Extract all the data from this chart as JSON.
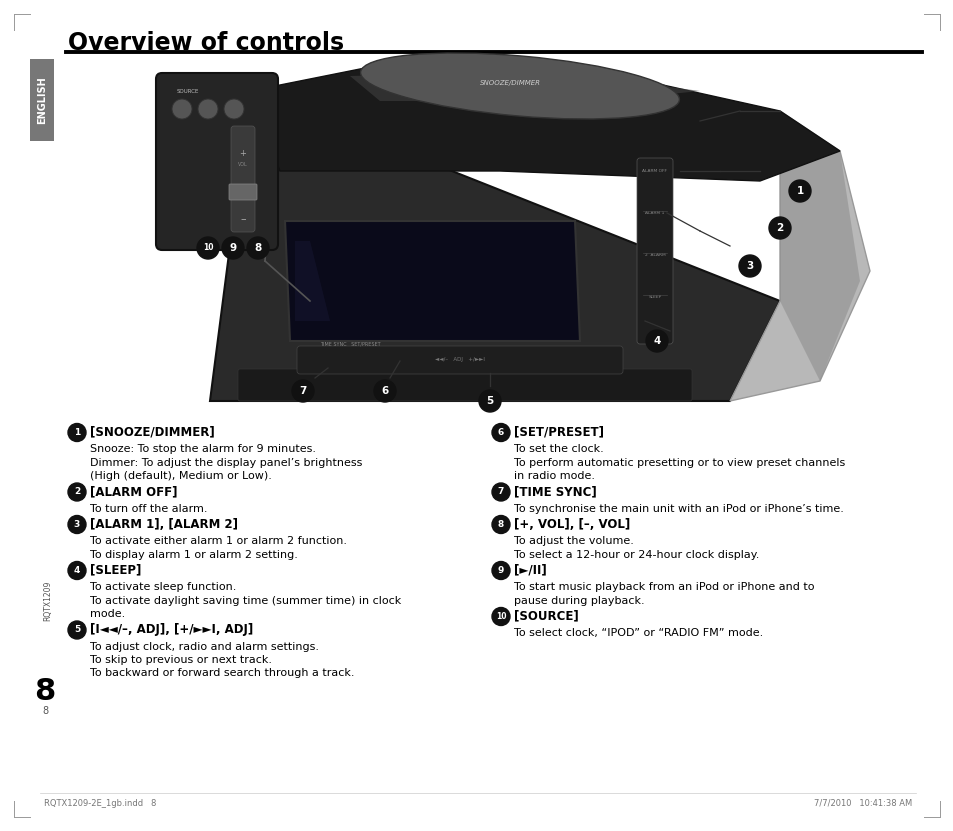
{
  "title": "Overview of controls",
  "bg_color": "#ffffff",
  "tab_color": "#777777",
  "tab_text": "ENGLISH",
  "header_line_color": "#000000",
  "footer_left": "RQTX1209-2E_1gb.indd   8",
  "footer_right": "7/7/2010   10:41:38 AM",
  "footer_page_code": "RQTX1209",
  "footer_page_num": "8",
  "items_left": [
    {
      "num": "1",
      "heading": "[SNOOZE/DIMMER]",
      "lines": [
        "Snooze: To stop the alarm for 9 minutes.",
        "Dimmer: To adjust the display panel’s brightness",
        "(High (default), Medium or Low)."
      ]
    },
    {
      "num": "2",
      "heading": "[ALARM OFF]",
      "lines": [
        "To turn off the alarm."
      ]
    },
    {
      "num": "3",
      "heading": "[ALARM 1], [ALARM 2]",
      "lines": [
        "To activate either alarm 1 or alarm 2 function.",
        "To display alarm 1 or alarm 2 setting."
      ]
    },
    {
      "num": "4",
      "heading": "[SLEEP]",
      "lines": [
        "To activate sleep function.",
        "To activate daylight saving time (summer time) in clock",
        "mode."
      ]
    },
    {
      "num": "5",
      "heading": "[I◄◄/–, ADJ], [+/►►I, ADJ]",
      "lines": [
        "To adjust clock, radio and alarm settings.",
        "To skip to previous or next track.",
        "To backward or forward search through a track."
      ]
    }
  ],
  "items_right": [
    {
      "num": "6",
      "heading": "[SET/PRESET]",
      "lines": [
        "To set the clock.",
        "To perform automatic presetting or to view preset channels",
        "in radio mode."
      ]
    },
    {
      "num": "7",
      "heading": "[TIME SYNC]",
      "lines": [
        "To synchronise the main unit with an iPod or iPhone’s time."
      ]
    },
    {
      "num": "8",
      "heading": "[+, VOL], [–, VOL]",
      "lines": [
        "To adjust the volume.",
        "To select a 12-hour or 24-hour clock display."
      ]
    },
    {
      "num": "9",
      "heading": "[►/II]",
      "lines": [
        "To start music playback from an iPod or iPhone and to",
        "pause during playback."
      ]
    },
    {
      "num": "10",
      "heading": "[SOURCE]",
      "lines": [
        "To select clock, “IPOD” or “RADIO FM” mode."
      ]
    }
  ]
}
